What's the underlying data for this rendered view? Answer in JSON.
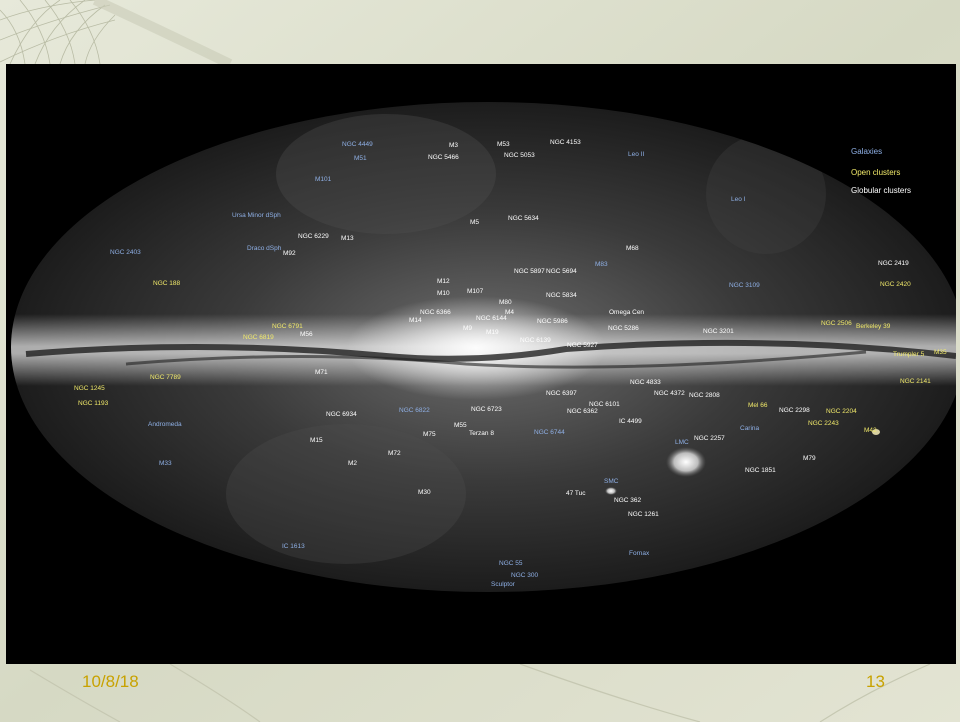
{
  "slide": {
    "date": "10/8/18",
    "page_number": "13",
    "accent_color": "#c8a200"
  },
  "legend": {
    "galaxies": "Galaxies",
    "open_clusters": "Open clusters",
    "globular_clusters": "Globular clusters",
    "colors": {
      "galaxies": "#8fb0e6",
      "open_clusters": "#f2ea6a",
      "globular_clusters": "#ffffff"
    }
  },
  "labels": {
    "galaxies": [
      "NGC 4449",
      "M51",
      "M101",
      "Ursa Minor dSph",
      "Draco dSph",
      "NGC 2403",
      "Leo II",
      "Leo I",
      "M83",
      "NGC 3109",
      "NGC 6822",
      "NGC 6744",
      "Andromeda",
      "M33",
      "IC 1613",
      "SMC",
      "LMC",
      "Carina",
      "Fornax",
      "NGC 55",
      "NGC 300",
      "Sculptor"
    ],
    "open_clusters": [
      "NGC 188",
      "NGC 6791",
      "NGC 6819",
      "NGC 7789",
      "NGC 1245",
      "NGC 1193",
      "NGC 2419",
      "NGC 2420",
      "NGC 2506",
      "Berkeley 39",
      "Trumpler 5",
      "M35",
      "NGC 2141",
      "Mel 66",
      "NGC 2204",
      "NGC 2243",
      "M42"
    ],
    "globular_clusters": [
      "M3",
      "NGC 5466",
      "M53",
      "NGC 5053",
      "NGC 4153",
      "M5",
      "NGC 5634",
      "NGC 6229",
      "M13",
      "M92",
      "M68",
      "NGC 5897",
      "NGC 5694",
      "M12",
      "M10",
      "M107",
      "M80",
      "NGC 5834",
      "M4",
      "NGC 6366",
      "M14",
      "NGC 6144",
      "Omega Cen",
      "M9",
      "M19",
      "NGC 5986",
      "NGC 5286",
      "NGC 3201",
      "M56",
      "NGC 6139",
      "NGC 5927",
      "M71",
      "NGC 4833",
      "NGC 6397",
      "NGC 4372",
      "NGC 2808",
      "NGC 6101",
      "NGC 6362",
      "NGC 6723",
      "NGC 6934",
      "IC 4499",
      "M55",
      "Terzan 8",
      "M75",
      "M15",
      "M72",
      "M2",
      "NGC 2298",
      "NGC 2257",
      "M79",
      "NGC 1851",
      "M30",
      "47 Tuc",
      "NGC 362",
      "NGC 1261"
    ]
  }
}
